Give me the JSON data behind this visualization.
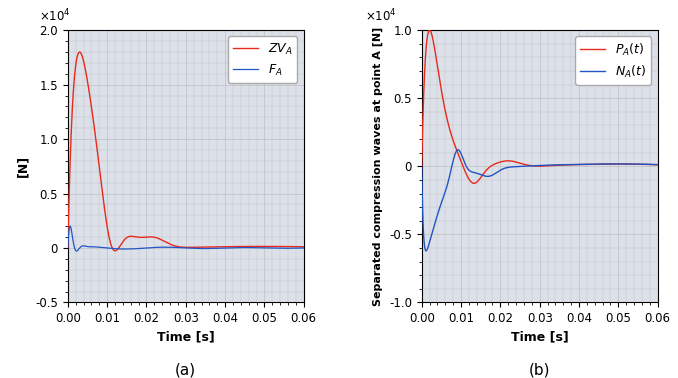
{
  "fig_width": 6.78,
  "fig_height": 3.78,
  "dpi": 100,
  "background_color": "#ffffff",
  "grid_color": "#c0c0c0",
  "subplot_bg": "#dce0e8",
  "left_ylim": [
    -5000,
    20000
  ],
  "left_yticks": [
    -5000,
    0,
    5000,
    10000,
    15000,
    20000
  ],
  "left_ytick_labels": [
    "-0.5",
    "0",
    "0.5",
    "1.0",
    "1.5",
    "2.0"
  ],
  "left_ylabel": "[N]",
  "right_ylim": [
    -10000,
    10000
  ],
  "right_yticks": [
    -10000,
    -5000,
    0,
    5000,
    10000
  ],
  "right_ytick_labels": [
    "-1.0",
    "-0.5",
    "0",
    "0.5",
    "1.0"
  ],
  "right_ylabel": "Separated compression waves at point A [N]",
  "xlim": [
    0,
    0.06
  ],
  "xticks": [
    0,
    0.01,
    0.02,
    0.03,
    0.04,
    0.05,
    0.06
  ],
  "red_color": "#e8291c",
  "blue_color": "#2155c4",
  "label_a": "(a)",
  "label_b": "(b)",
  "xlabel": "Time [s]"
}
